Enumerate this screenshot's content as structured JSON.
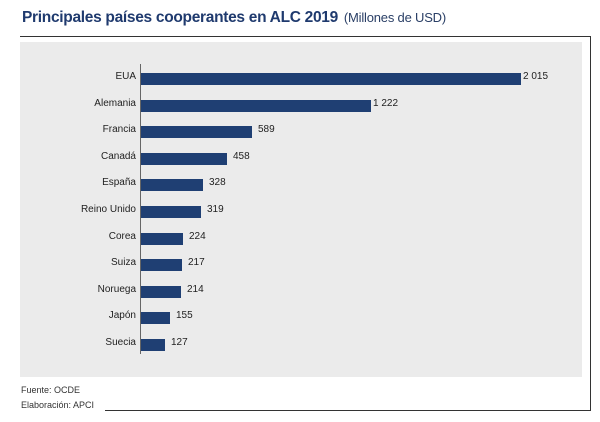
{
  "header": {
    "title": "Principales países cooperantes en ALC 2019",
    "subtitle": "(Millones de USD)"
  },
  "footer": {
    "source": "Fuente: OCDE",
    "credit": "Elaboración: APCI"
  },
  "colors": {
    "bar": "#1f3f73",
    "plot_background": "#ebebeb",
    "title": "#1f3a6e"
  },
  "chart_data": {
    "type": "bar",
    "orientation": "horizontal",
    "title": "Principales países cooperantes en ALC 2019",
    "subtitle": "(Millones de USD)",
    "xlabel": "",
    "ylabel": "",
    "unit": "Millones de USD",
    "categories": [
      "EUA",
      "Alemania",
      "Francia",
      "Canadá",
      "España",
      "Reino Unido",
      "Corea",
      "Suiza",
      "Noruega",
      "Japón",
      "Suecia"
    ],
    "values": [
      2015,
      1222,
      589,
      458,
      328,
      319,
      224,
      217,
      214,
      155,
      127
    ],
    "value_labels": [
      "2 015",
      "1 222",
      "589",
      "458",
      "328",
      "319",
      "224",
      "217",
      "214",
      "155",
      "127"
    ],
    "xlim": [
      0,
      2015
    ],
    "grid": false,
    "legend": null,
    "data_labels": true
  }
}
